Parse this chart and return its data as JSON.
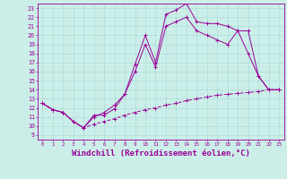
{
  "background_color": "#cceee8",
  "line_color": "#990099",
  "grid_color": "#aadddd",
  "xlabel": "Windchill (Refroidissement éolien,°C)",
  "xlabel_fontsize": 6.5,
  "ylabel_ticks": [
    9,
    10,
    11,
    12,
    13,
    14,
    15,
    16,
    17,
    18,
    19,
    20,
    21,
    22,
    23
  ],
  "xlabel_ticks": [
    0,
    1,
    2,
    3,
    4,
    5,
    6,
    7,
    8,
    9,
    10,
    11,
    12,
    13,
    14,
    15,
    16,
    17,
    18,
    19,
    20,
    21,
    22,
    23
  ],
  "xlim": [
    -0.5,
    23.5
  ],
  "ylim": [
    8.5,
    23.5
  ],
  "line1_x": [
    0,
    1,
    2,
    3,
    4,
    5,
    6,
    7,
    8,
    9,
    10,
    11,
    12,
    13,
    14,
    15,
    16,
    17,
    18,
    19,
    20,
    21,
    22,
    23
  ],
  "line1_y": [
    12.5,
    11.8,
    11.5,
    10.5,
    9.8,
    11.2,
    11.2,
    11.9,
    13.5,
    16.8,
    20.0,
    17.0,
    22.3,
    22.8,
    23.5,
    21.5,
    21.3,
    21.3,
    21.0,
    20.5,
    18.0,
    15.5,
    14.0,
    14.0
  ],
  "line2_x": [
    0,
    1,
    2,
    3,
    4,
    5,
    6,
    7,
    8,
    9,
    10,
    11,
    12,
    13,
    14,
    15,
    16,
    17,
    18,
    19,
    20,
    21,
    22,
    23
  ],
  "line2_y": [
    12.5,
    11.8,
    11.5,
    10.5,
    9.8,
    10.2,
    10.5,
    10.8,
    11.2,
    11.5,
    11.8,
    12.0,
    12.3,
    12.5,
    12.8,
    13.0,
    13.2,
    13.4,
    13.5,
    13.6,
    13.7,
    13.8,
    14.0,
    14.0
  ],
  "line3_x": [
    0,
    1,
    2,
    3,
    4,
    5,
    6,
    7,
    8,
    9,
    10,
    11,
    12,
    13,
    14,
    15,
    16,
    17,
    18,
    19,
    20,
    21,
    22,
    23
  ],
  "line3_y": [
    12.5,
    11.8,
    11.5,
    10.5,
    9.8,
    11.0,
    11.5,
    12.3,
    13.5,
    16.0,
    19.0,
    16.5,
    21.0,
    21.5,
    22.0,
    20.5,
    20.0,
    19.5,
    19.0,
    20.5,
    20.5,
    15.5,
    14.0,
    14.0
  ]
}
